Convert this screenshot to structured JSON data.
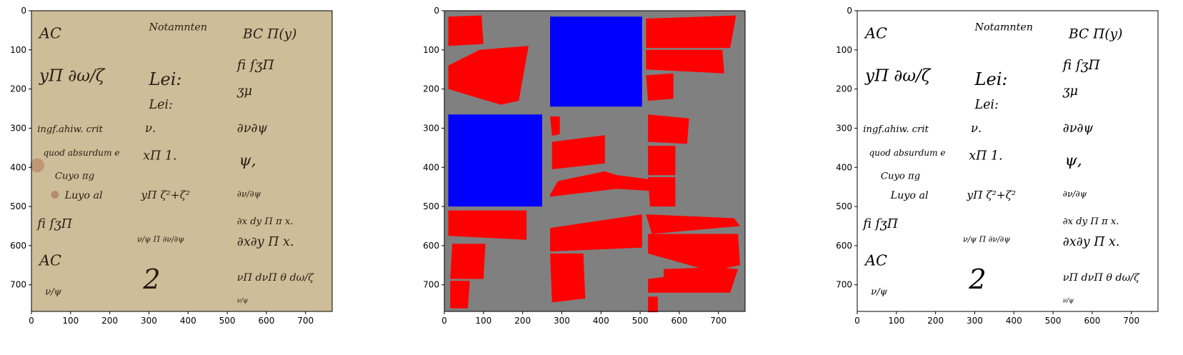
{
  "figure": {
    "panels": [
      {
        "name": "original-manuscript"
      },
      {
        "name": "segmentation-mask",
        "colors": {
          "background": "#808080",
          "text_region": "#ff0000",
          "image_region": "#0000ff"
        }
      },
      {
        "name": "binarized-output"
      }
    ],
    "axes": {
      "x_ticks": [
        "0",
        "100",
        "200",
        "300",
        "400",
        "500",
        "600",
        "700"
      ],
      "y_ticks": [
        "0",
        "100",
        "200",
        "300",
        "400",
        "500",
        "600",
        "700"
      ],
      "xlim": [
        0,
        768
      ],
      "ylim": [
        768,
        0
      ]
    },
    "manuscript": {
      "colors": {
        "paper": "#cdbd98",
        "ink": "#2a1d14"
      },
      "lines": [
        {
          "t": "AC",
          "x": 20,
          "y": 70,
          "s": 38
        },
        {
          "t": "Notamnten",
          "x": 300,
          "y": 50,
          "s": 26
        },
        {
          "t": "BC Π(y)",
          "x": 540,
          "y": 70,
          "s": 34
        },
        {
          "t": "fi ſʒΠ",
          "x": 525,
          "y": 150,
          "s": 34
        },
        {
          "t": "yΠ ∂ω/ζ",
          "x": 20,
          "y": 180,
          "s": 42
        },
        {
          "t": "Lei:",
          "x": 300,
          "y": 190,
          "s": 44
        },
        {
          "t": "Lei:",
          "x": 300,
          "y": 250,
          "s": 32
        },
        {
          "t": "ʒμ",
          "x": 525,
          "y": 215,
          "s": 32
        },
        {
          "t": "ingf.ahiw. crit",
          "x": 15,
          "y": 310,
          "s": 24
        },
        {
          "t": "ν.",
          "x": 290,
          "y": 310,
          "s": 30
        },
        {
          "t": "∂ν∂ψ",
          "x": 525,
          "y": 310,
          "s": 32
        },
        {
          "t": "quod absurdum e",
          "x": 30,
          "y": 370,
          "s": 22
        },
        {
          "t": "xΠ 1.",
          "x": 285,
          "y": 380,
          "s": 32
        },
        {
          "t": "ψ,",
          "x": 530,
          "y": 395,
          "s": 40
        },
        {
          "t": "Cuyo πg",
          "x": 60,
          "y": 430,
          "s": 24
        },
        {
          "t": "yΠ ζ²+ζ²",
          "x": 280,
          "y": 480,
          "s": 28
        },
        {
          "t": "∂ν/∂ψ",
          "x": 525,
          "y": 475,
          "s": 22
        },
        {
          "t": "Luyo al",
          "x": 85,
          "y": 480,
          "s": 26
        },
        {
          "t": "fi ſʒΠ",
          "x": 15,
          "y": 555,
          "s": 32
        },
        {
          "t": "∂x dy Π π x.",
          "x": 525,
          "y": 545,
          "s": 24
        },
        {
          "t": "ν/ψ Π ∂ν/∂ψ",
          "x": 270,
          "y": 590,
          "s": 20
        },
        {
          "t": "∂x∂y Π x.",
          "x": 525,
          "y": 600,
          "s": 32
        },
        {
          "t": "AC",
          "x": 20,
          "y": 650,
          "s": 38
        },
        {
          "t": "2",
          "x": 285,
          "y": 710,
          "s": 70
        },
        {
          "t": "νΠ dνΠ θ dω/ζ",
          "x": 525,
          "y": 690,
          "s": 26
        },
        {
          "t": "ν/ψ",
          "x": 35,
          "y": 725,
          "s": 24
        },
        {
          "t": "ν/ψ",
          "x": 525,
          "y": 745,
          "s": 16
        }
      ]
    },
    "mask": {
      "text_regions": [
        [
          [
            10,
            15
          ],
          [
            95,
            12
          ],
          [
            100,
            85
          ],
          [
            10,
            90
          ]
        ],
        [
          [
            10,
            140
          ],
          [
            90,
            100
          ],
          [
            215,
            90
          ],
          [
            190,
            230
          ],
          [
            145,
            240
          ],
          [
            110,
            230
          ],
          [
            10,
            200
          ]
        ],
        [
          [
            270,
            270
          ],
          [
            295,
            270
          ],
          [
            295,
            315
          ],
          [
            275,
            320
          ]
        ],
        [
          [
            275,
            335
          ],
          [
            410,
            318
          ],
          [
            410,
            390
          ],
          [
            275,
            405
          ]
        ],
        [
          [
            270,
            470
          ],
          [
            290,
            435
          ],
          [
            410,
            410
          ],
          [
            440,
            420
          ],
          [
            520,
            430
          ],
          [
            530,
            460
          ],
          [
            440,
            455
          ],
          [
            270,
            475
          ]
        ],
        [
          [
            515,
            20
          ],
          [
            745,
            12
          ],
          [
            730,
            95
          ],
          [
            515,
            95
          ]
        ],
        [
          [
            515,
            100
          ],
          [
            710,
            100
          ],
          [
            715,
            160
          ],
          [
            515,
            150
          ]
        ],
        [
          [
            515,
            165
          ],
          [
            585,
            160
          ],
          [
            585,
            225
          ],
          [
            520,
            230
          ]
        ],
        [
          [
            520,
            265
          ],
          [
            625,
            275
          ],
          [
            620,
            340
          ],
          [
            520,
            335
          ]
        ],
        [
          [
            520,
            345
          ],
          [
            590,
            345
          ],
          [
            590,
            420
          ],
          [
            520,
            420
          ]
        ],
        [
          [
            520,
            425
          ],
          [
            590,
            425
          ],
          [
            590,
            500
          ],
          [
            525,
            500
          ]
        ],
        [
          [
            10,
            510
          ],
          [
            210,
            510
          ],
          [
            210,
            585
          ],
          [
            10,
            575
          ]
        ],
        [
          [
            20,
            595
          ],
          [
            105,
            595
          ],
          [
            100,
            685
          ],
          [
            15,
            685
          ]
        ],
        [
          [
            15,
            690
          ],
          [
            65,
            690
          ],
          [
            60,
            760
          ],
          [
            15,
            760
          ]
        ],
        [
          [
            270,
            555
          ],
          [
            505,
            520
          ],
          [
            505,
            605
          ],
          [
            270,
            615
          ]
        ],
        [
          [
            270,
            620
          ],
          [
            355,
            620
          ],
          [
            360,
            735
          ],
          [
            275,
            745
          ]
        ],
        [
          [
            515,
            520
          ],
          [
            740,
            530
          ],
          [
            755,
            550
          ],
          [
            530,
            570
          ]
        ],
        [
          [
            520,
            570
          ],
          [
            750,
            570
          ],
          [
            755,
            650
          ],
          [
            680,
            665
          ],
          [
            520,
            620
          ]
        ],
        [
          [
            520,
            685
          ],
          [
            560,
            680
          ],
          [
            560,
            660
          ],
          [
            690,
            655
          ],
          [
            750,
            660
          ],
          [
            730,
            720
          ],
          [
            520,
            720
          ]
        ],
        [
          [
            520,
            730
          ],
          [
            545,
            730
          ],
          [
            545,
            770
          ],
          [
            520,
            770
          ]
        ]
      ],
      "image_regions": [
        [
          [
            270,
            15
          ],
          [
            505,
            15
          ],
          [
            505,
            245
          ],
          [
            270,
            245
          ]
        ],
        [
          [
            10,
            265
          ],
          [
            250,
            265
          ],
          [
            250,
            500
          ],
          [
            10,
            500
          ]
        ]
      ]
    }
  }
}
